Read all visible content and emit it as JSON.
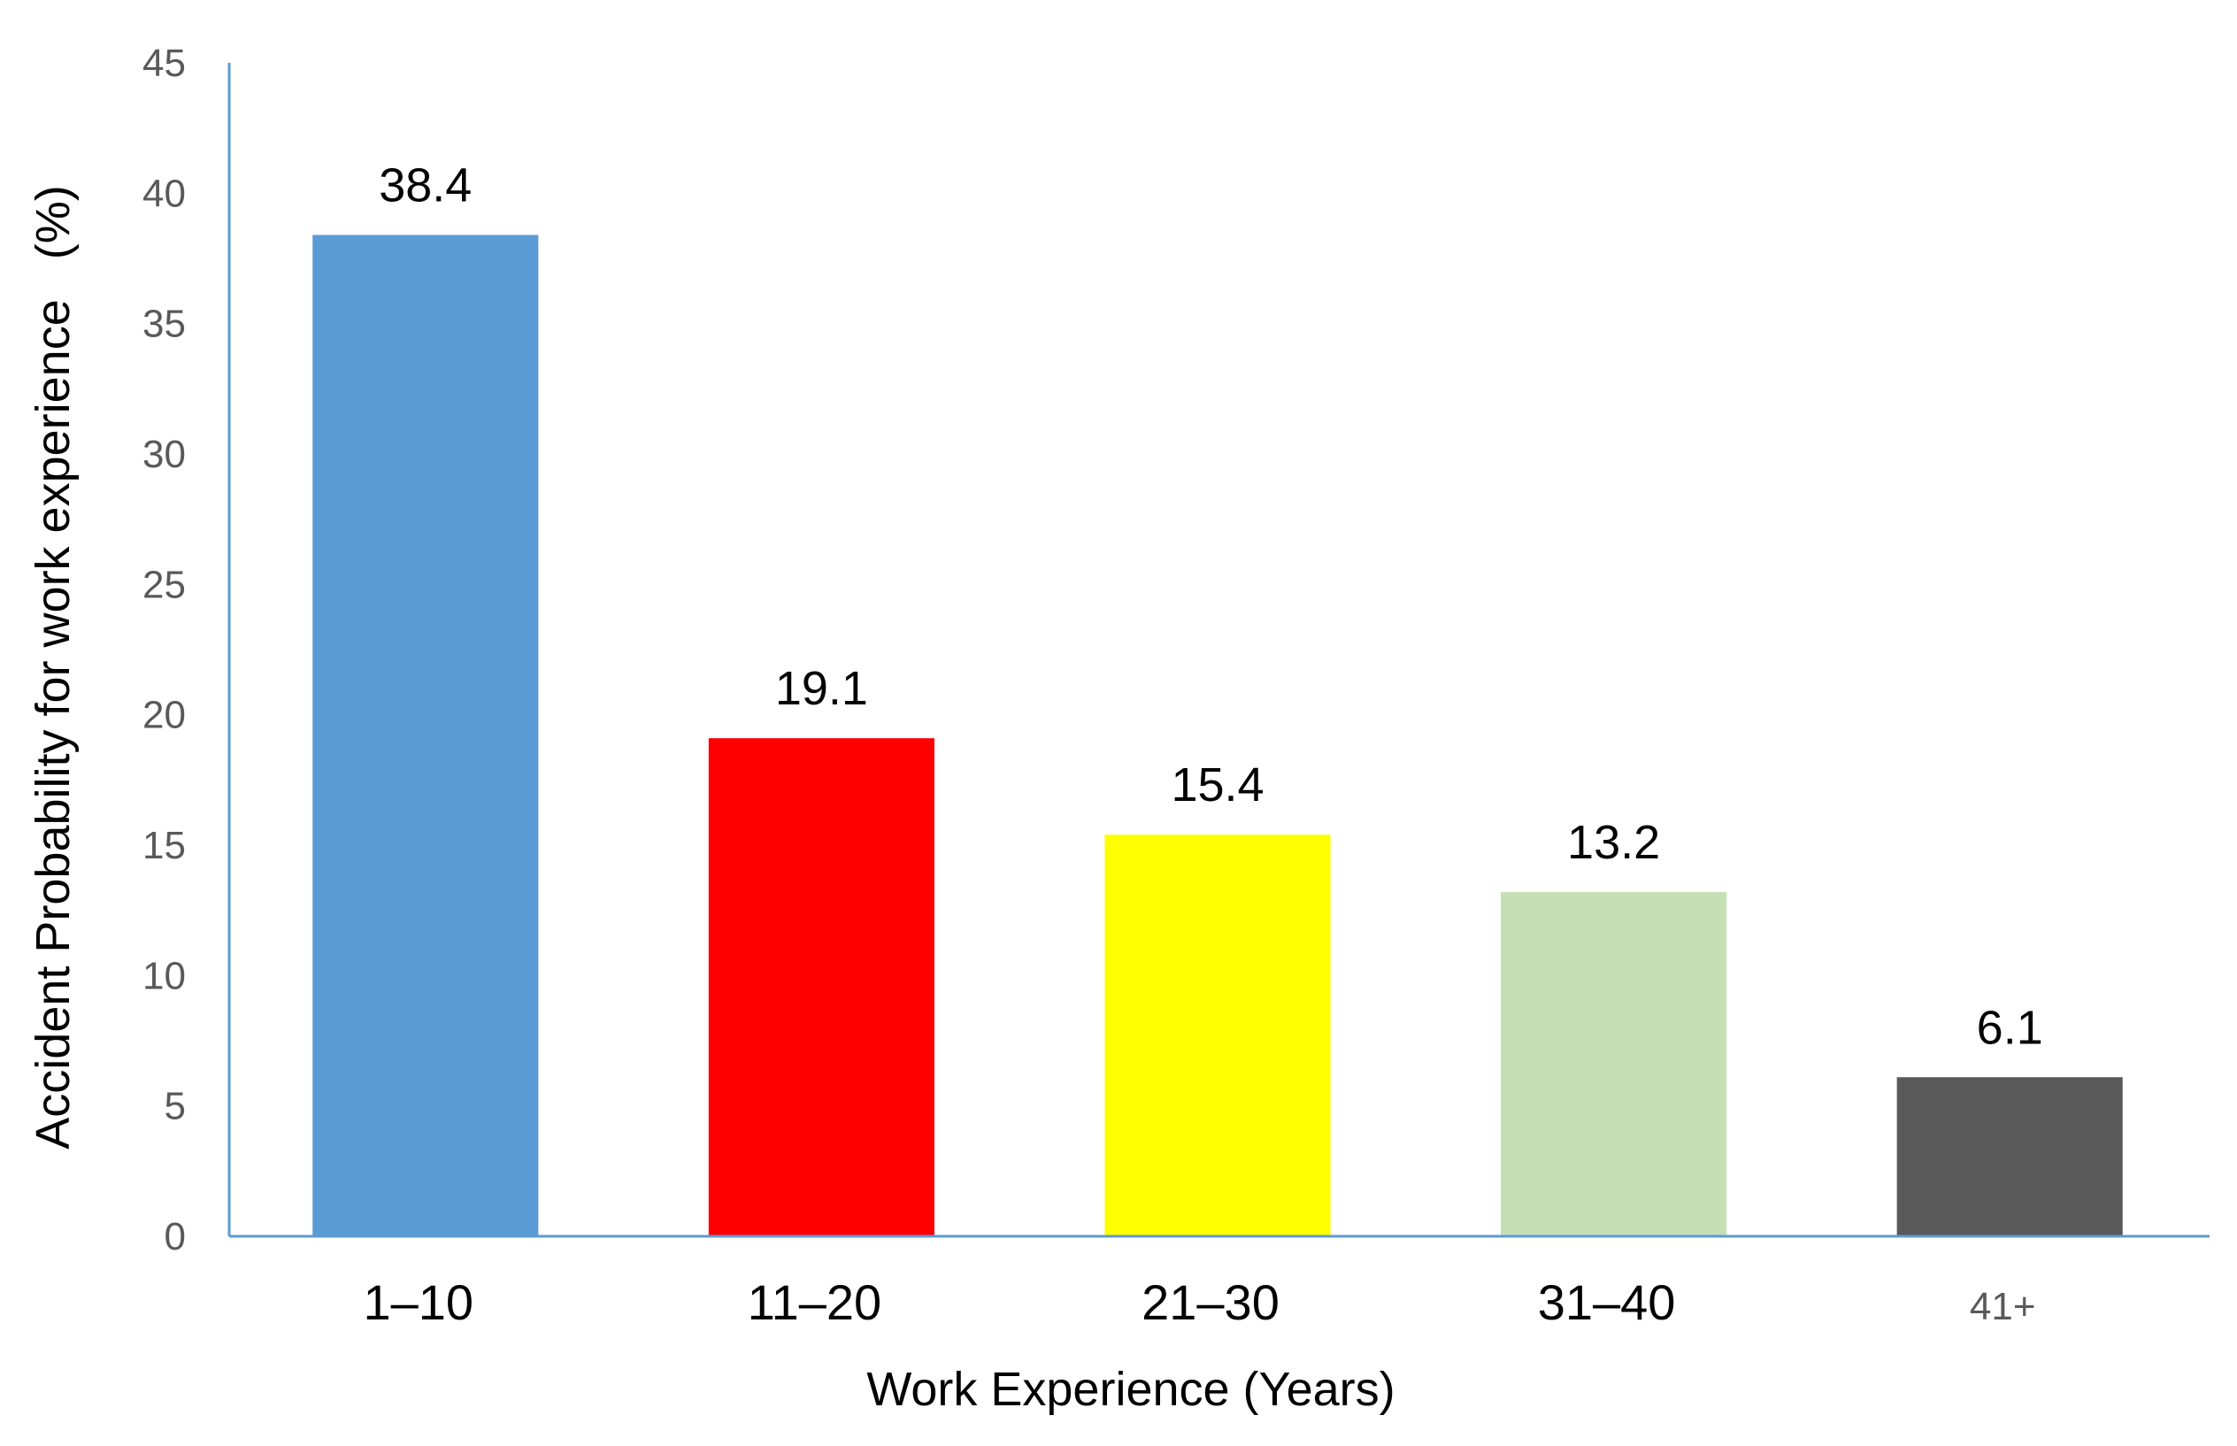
{
  "chart_data": {
    "type": "bar",
    "title": "",
    "xlabel": "Work Experience (Years)",
    "ylabel": "Accident Probability for work experience   (%)",
    "categories": [
      "1–10",
      "11–20",
      "21–30",
      "31–40",
      "41+"
    ],
    "values": [
      38.4,
      19.1,
      15.4,
      13.2,
      6.1
    ],
    "data_labels": [
      "38.4",
      "19.1",
      "15.4",
      "13.2",
      "6.1"
    ],
    "colors": [
      "#5B9BD5",
      "#FF0000",
      "#FFFF00",
      "#C5E0B4",
      "#595959"
    ],
    "ylim": [
      0,
      45
    ],
    "yticks": [
      "0",
      "5",
      "10",
      "15",
      "20",
      "25",
      "30",
      "35",
      "40",
      "45"
    ],
    "axis_color": "#5B9BD5",
    "grid": false,
    "legend": "none"
  }
}
